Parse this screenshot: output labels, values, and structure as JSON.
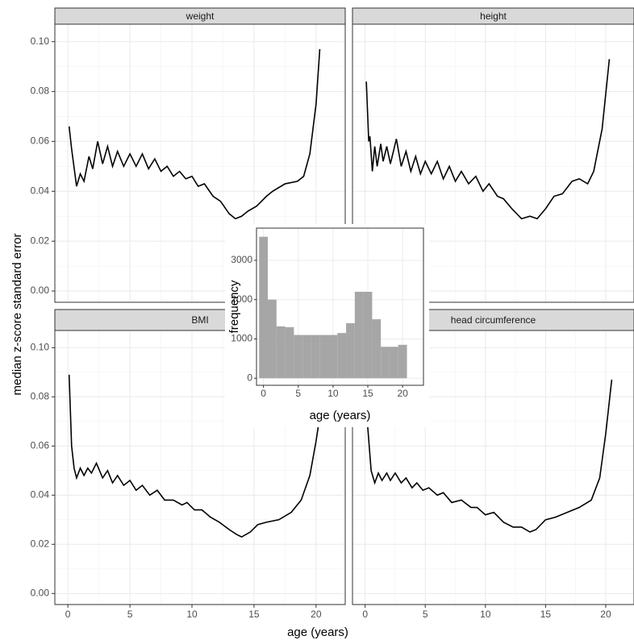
{
  "chart_data": {
    "type": "facet",
    "xlabel": "age (years)",
    "ylabel": "median z-score standard error",
    "xlim": [
      -1.05,
      22.35
    ],
    "ylim": [
      -0.0045,
      0.107
    ],
    "xticks": [
      0,
      5,
      10,
      15,
      20
    ],
    "yticks": [
      {
        "value": 0,
        "label": "0.00"
      },
      {
        "value": 0.02,
        "label": "0.02"
      },
      {
        "value": 0.04,
        "label": "0.04"
      },
      {
        "value": 0.06,
        "label": "0.06"
      },
      {
        "value": 0.08,
        "label": "0.08"
      },
      {
        "value": 0.1,
        "label": "0.10"
      }
    ],
    "grid": true,
    "minor_grid": true,
    "color": "#000000",
    "panels": [
      {
        "type": "line",
        "title": "weight",
        "x": [
          0.1,
          0.3,
          0.7,
          1.0,
          1.3,
          1.7,
          2.0,
          2.4,
          2.8,
          3.2,
          3.6,
          4.0,
          4.5,
          5.0,
          5.5,
          6.0,
          6.5,
          7.0,
          7.5,
          8.0,
          8.5,
          9.0,
          9.5,
          10.0,
          10.5,
          11.0,
          11.7,
          12.3,
          13.0,
          13.5,
          14.0,
          14.5,
          15.2,
          16.0,
          16.5,
          17.5,
          18.5,
          19.0,
          19.5,
          20.0,
          20.3
        ],
        "values": [
          0.066,
          0.057,
          0.042,
          0.047,
          0.044,
          0.054,
          0.049,
          0.06,
          0.051,
          0.058,
          0.05,
          0.056,
          0.05,
          0.055,
          0.05,
          0.055,
          0.049,
          0.053,
          0.048,
          0.05,
          0.046,
          0.048,
          0.045,
          0.046,
          0.042,
          0.043,
          0.038,
          0.036,
          0.031,
          0.029,
          0.03,
          0.032,
          0.034,
          0.038,
          0.04,
          0.043,
          0.044,
          0.046,
          0.055,
          0.075,
          0.097
        ]
      },
      {
        "type": "line",
        "title": "height",
        "x": [
          0.1,
          0.3,
          0.4,
          0.6,
          0.8,
          1.0,
          1.3,
          1.5,
          1.8,
          2.1,
          2.6,
          3.0,
          3.4,
          3.8,
          4.2,
          4.6,
          5.0,
          5.5,
          6.0,
          6.5,
          7.0,
          7.5,
          8.0,
          8.6,
          9.2,
          9.8,
          10.3,
          11.0,
          11.5,
          12.2,
          13.0,
          13.7,
          14.3,
          15.0,
          15.7,
          16.4,
          17.2,
          17.8,
          18.5,
          19.0,
          19.7,
          20.3
        ],
        "values": [
          0.084,
          0.06,
          0.062,
          0.048,
          0.058,
          0.05,
          0.059,
          0.052,
          0.058,
          0.051,
          0.061,
          0.05,
          0.056,
          0.048,
          0.054,
          0.047,
          0.052,
          0.047,
          0.052,
          0.045,
          0.05,
          0.044,
          0.048,
          0.043,
          0.046,
          0.04,
          0.043,
          0.038,
          0.037,
          0.033,
          0.029,
          0.03,
          0.029,
          0.033,
          0.038,
          0.039,
          0.044,
          0.045,
          0.043,
          0.048,
          0.065,
          0.093
        ]
      },
      {
        "type": "line",
        "title": "BMI",
        "x": [
          0.1,
          0.3,
          0.5,
          0.7,
          1.0,
          1.3,
          1.6,
          1.9,
          2.3,
          2.8,
          3.2,
          3.6,
          4.0,
          4.5,
          5.0,
          5.5,
          6.0,
          6.6,
          7.2,
          7.8,
          8.5,
          9.2,
          9.6,
          10.2,
          10.8,
          11.5,
          12.2,
          13.0,
          13.6,
          14.0,
          14.7,
          15.3,
          16.0,
          17.0,
          18.0,
          18.8,
          19.5,
          20.0,
          20.3
        ],
        "values": [
          0.089,
          0.06,
          0.051,
          0.047,
          0.051,
          0.048,
          0.051,
          0.049,
          0.053,
          0.047,
          0.05,
          0.045,
          0.048,
          0.044,
          0.046,
          0.042,
          0.044,
          0.04,
          0.042,
          0.038,
          0.038,
          0.036,
          0.037,
          0.034,
          0.034,
          0.031,
          0.029,
          0.026,
          0.024,
          0.023,
          0.025,
          0.028,
          0.029,
          0.03,
          0.033,
          0.038,
          0.048,
          0.062,
          0.072
        ]
      },
      {
        "type": "line",
        "title": "head circumference",
        "x": [
          0.1,
          0.5,
          0.8,
          1.1,
          1.4,
          1.8,
          2.1,
          2.5,
          3.0,
          3.4,
          3.9,
          4.3,
          4.8,
          5.3,
          6.0,
          6.5,
          7.2,
          8.0,
          8.8,
          9.3,
          10.0,
          10.7,
          11.5,
          12.3,
          13.0,
          13.7,
          14.2,
          15.0,
          15.8,
          16.8,
          17.8,
          18.8,
          19.5,
          20.0,
          20.5
        ],
        "values": [
          0.075,
          0.05,
          0.045,
          0.049,
          0.046,
          0.049,
          0.046,
          0.049,
          0.045,
          0.047,
          0.043,
          0.045,
          0.042,
          0.043,
          0.04,
          0.041,
          0.037,
          0.038,
          0.035,
          0.035,
          0.032,
          0.033,
          0.029,
          0.027,
          0.027,
          0.025,
          0.026,
          0.03,
          0.031,
          0.033,
          0.035,
          0.038,
          0.047,
          0.065,
          0.087
        ]
      }
    ],
    "inset": {
      "type": "histogram",
      "xlabel": "age (years)",
      "ylabel": "frequency",
      "color": "#a6a6a6",
      "bins": [
        -0.625,
        0.625,
        1.875,
        3.125,
        4.375,
        5.625,
        6.875,
        8.125,
        9.375,
        10.625,
        11.875,
        13.125,
        14.375,
        15.625,
        16.875,
        18.125,
        19.375,
        20.625
      ],
      "values": [
        3600,
        2000,
        1320,
        1300,
        1100,
        1100,
        1100,
        1100,
        1100,
        1150,
        1400,
        2200,
        2200,
        1500,
        800,
        800,
        850
      ],
      "xlim": [
        -1,
        23
      ],
      "ylim": [
        -180,
        3820
      ],
      "xticks": [
        0,
        5,
        10,
        15,
        20
      ],
      "yticks": [
        0,
        1000,
        2000,
        3000
      ],
      "grid": true
    }
  }
}
